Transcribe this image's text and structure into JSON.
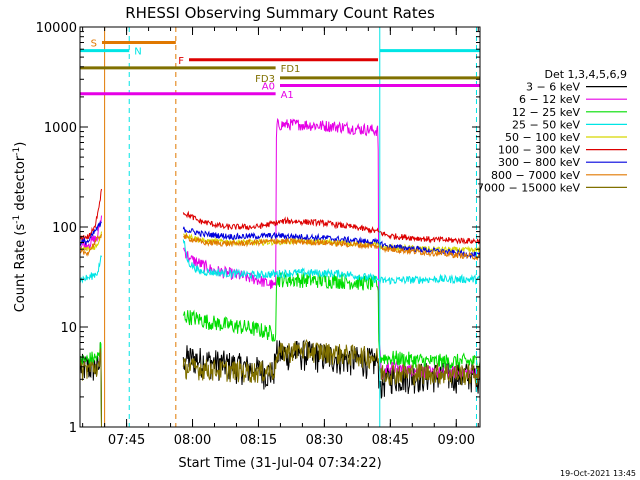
{
  "footer_timestamp": "19-Oct-2021 13:45",
  "chart_data": {
    "type": "line",
    "title": "RHESSI Observing Summary Count Rates",
    "xlabel": "Start Time (31-Jul-04 07:34:22)",
    "ylabel_main": "Count Rate (s",
    "ylabel_sup": "-1",
    "ylabel_mid": " detector",
    "ylabel_sup2": "-1",
    "ylabel_end": ")",
    "yscale": "log",
    "ylim": [
      1,
      10000
    ],
    "xlim_minutes": [
      0,
      91
    ],
    "x_ticks": [
      {
        "label": "07:45",
        "t": 10.6
      },
      {
        "label": "08:00",
        "t": 25.6
      },
      {
        "label": "08:15",
        "t": 40.6
      },
      {
        "label": "08:30",
        "t": 55.6
      },
      {
        "label": "08:45",
        "t": 70.6
      },
      {
        "label": "09:00",
        "t": 85.6
      }
    ],
    "y_ticks": [
      {
        "label": "1",
        "v": 1
      },
      {
        "label": "10",
        "v": 10
      },
      {
        "label": "100",
        "v": 100
      },
      {
        "label": "1000",
        "v": 1000
      },
      {
        "label": "10000",
        "v": 10000
      }
    ],
    "legend": {
      "title": "Det 1,3,4,5,6,9",
      "entries": [
        {
          "label": "3 − 6 keV",
          "color": "#000000"
        },
        {
          "label": "6 − 12 keV",
          "color": "#e600e6"
        },
        {
          "label": "12 − 25 keV",
          "color": "#00dd00"
        },
        {
          "label": "25 − 50 keV",
          "color": "#00e5e5"
        },
        {
          "label": "50 − 100 keV",
          "color": "#d8d800"
        },
        {
          "label": "100 − 300 keV",
          "color": "#dd0000"
        },
        {
          "label": "300 − 800 keV",
          "color": "#0000dd"
        },
        {
          "label": "800 − 7000 keV",
          "color": "#e07800"
        },
        {
          "label": "7000 − 15000 keV",
          "color": "#807000"
        }
      ]
    },
    "flag_bars": [
      {
        "label": "S",
        "color": "#e07800",
        "t0": 5.0,
        "t1": 21.8,
        "v": 7000,
        "label_side": "left"
      },
      {
        "label": "N",
        "color": "#00e5e5",
        "t0": 0.0,
        "t1": 11.2,
        "v": 5800,
        "label_side": "right"
      },
      {
        "label": "N",
        "color": "#00e5e5",
        "t0": 68.2,
        "t1": 91.0,
        "v": 5800,
        "label_side": "none"
      },
      {
        "label": "F",
        "color": "#dd0000",
        "t0": 24.8,
        "t1": 67.8,
        "v": 4700,
        "label_side": "left"
      },
      {
        "label": "FD1",
        "color": "#807000",
        "t0": 0.0,
        "t1": 44.5,
        "v": 3900,
        "label_side": "right"
      },
      {
        "label": "FD3",
        "color": "#807000",
        "t0": 45.5,
        "t1": 91.0,
        "v": 3100,
        "label_side": "left"
      },
      {
        "label": "A0",
        "color": "#e600e6",
        "t0": 45.5,
        "t1": 91.0,
        "v": 2600,
        "label_side": "left"
      },
      {
        "label": "A1",
        "color": "#e600e6",
        "t0": 0.0,
        "t1": 44.5,
        "v": 2150,
        "label_side": "right"
      }
    ],
    "night_lines": [
      {
        "t": 0.0,
        "color": "#00e5e5",
        "style": "solid"
      },
      {
        "t": 11.2,
        "color": "#00e5e5",
        "style": "dashed"
      },
      {
        "t": 68.2,
        "color": "#00e5e5",
        "style": "solid"
      },
      {
        "t": 90.2,
        "color": "#00e5e5",
        "style": "dashed"
      },
      {
        "t": 5.6,
        "color": "#e07800",
        "style": "solid"
      },
      {
        "t": 21.8,
        "color": "#e07800",
        "style": "dashed"
      }
    ],
    "series": [
      {
        "name": "3 - 6 keV",
        "color": "#000000",
        "noise": 0.35,
        "noise_scale": "lin",
        "segments": [
          [
            [
              0,
              4
            ],
            [
              4.5,
              4
            ],
            [
              4.7,
              7
            ],
            [
              4.9,
              1
            ]
          ],
          [
            [
              23.5,
              5
            ],
            [
              30,
              4.5
            ],
            [
              40,
              3.8
            ],
            [
              44,
              3.4
            ],
            [
              44.6,
              5.5
            ],
            [
              50,
              5.5
            ],
            [
              58,
              5
            ],
            [
              67.8,
              4.5
            ],
            [
              68.2,
              2.5
            ],
            [
              70,
              3.2
            ],
            [
              80,
              3.3
            ],
            [
              91,
              3.3
            ]
          ]
        ]
      },
      {
        "name": "6 - 12 keV",
        "color": "#e600e6",
        "noise": 0.06,
        "noise_scale": "log",
        "segments": [
          [
            [
              0,
              65
            ],
            [
              2,
              68
            ],
            [
              4,
              78
            ],
            [
              4.9,
              130
            ]
          ],
          [
            [
              23.5,
              60
            ],
            [
              25,
              48
            ],
            [
              30,
              37
            ],
            [
              40,
              30
            ],
            [
              44,
              26
            ],
            [
              44.6,
              26
            ],
            [
              44.7,
              1050
            ],
            [
              50,
              1060
            ],
            [
              58,
              1010
            ],
            [
              63,
              960
            ],
            [
              67.8,
              920
            ],
            [
              67.9,
              10
            ],
            [
              68.5,
              3
            ],
            [
              70,
              4
            ],
            [
              80,
              3.5
            ],
            [
              91,
              3.5
            ]
          ]
        ]
      },
      {
        "name": "12 - 25 keV",
        "color": "#00dd00",
        "noise": 0.08,
        "noise_scale": "log",
        "segments": [
          [
            [
              0,
              4.5
            ],
            [
              4.5,
              5
            ],
            [
              4.7,
              9
            ],
            [
              4.9,
              1
            ]
          ],
          [
            [
              23.5,
              13
            ],
            [
              30,
              11
            ],
            [
              40,
              9.5
            ],
            [
              44,
              8.5
            ],
            [
              44.6,
              8.5
            ],
            [
              44.7,
              30
            ],
            [
              58,
              29
            ],
            [
              67.8,
              27
            ],
            [
              68,
              5
            ],
            [
              80,
              4.5
            ],
            [
              91,
              4.5
            ]
          ]
        ]
      },
      {
        "name": "25 - 50 keV",
        "color": "#00e5e5",
        "noise": 0.04,
        "noise_scale": "log",
        "segments": [
          [
            [
              0,
              30
            ],
            [
              2,
              31
            ],
            [
              4,
              35
            ],
            [
              4.9,
              50
            ]
          ],
          [
            [
              23.5,
              75
            ],
            [
              24.5,
              45
            ],
            [
              27,
              36
            ],
            [
              40,
              33
            ],
            [
              50,
              35
            ],
            [
              60,
              34
            ],
            [
              67.8,
              30
            ],
            [
              68,
              29
            ],
            [
              80,
              30
            ],
            [
              91,
              30
            ]
          ]
        ]
      },
      {
        "name": "50 - 100 keV",
        "color": "#d8d800",
        "noise": 0.03,
        "noise_scale": "log",
        "segments": [
          [
            [
              0,
              60
            ],
            [
              2,
              60
            ],
            [
              4,
              65
            ],
            [
              4.9,
              90
            ]
          ],
          [
            [
              23.5,
              85
            ],
            [
              28,
              72
            ],
            [
              40,
              70
            ],
            [
              50,
              72
            ],
            [
              60,
              70
            ],
            [
              67.8,
              66
            ],
            [
              68,
              63
            ],
            [
              80,
              60
            ],
            [
              91,
              58
            ]
          ]
        ]
      },
      {
        "name": "100 - 300 keV",
        "color": "#dd0000",
        "noise": 0.03,
        "noise_scale": "log",
        "segments": [
          [
            [
              0,
              78
            ],
            [
              2,
              80
            ],
            [
              3.5,
              100
            ],
            [
              4.5,
              180
            ],
            [
              4.9,
              240
            ]
          ],
          [
            [
              23.5,
              140
            ],
            [
              27,
              115
            ],
            [
              33,
              100
            ],
            [
              40,
              100
            ],
            [
              47,
              115
            ],
            [
              55,
              110
            ],
            [
              62,
              100
            ],
            [
              67.8,
              90
            ],
            [
              70,
              82
            ],
            [
              80,
              75
            ],
            [
              91,
              72
            ]
          ]
        ]
      },
      {
        "name": "300 - 800 keV",
        "color": "#0000dd",
        "noise": 0.03,
        "noise_scale": "log",
        "segments": [
          [
            [
              0,
              70
            ],
            [
              2,
              72
            ],
            [
              4.9,
              110
            ]
          ],
          [
            [
              23.5,
              95
            ],
            [
              28,
              85
            ],
            [
              35,
              80
            ],
            [
              45,
              82
            ],
            [
              55,
              78
            ],
            [
              67.8,
              70
            ],
            [
              70,
              64
            ],
            [
              80,
              58
            ],
            [
              91,
              52
            ]
          ]
        ]
      },
      {
        "name": "800 - 7000 keV",
        "color": "#e07800",
        "noise": 0.03,
        "noise_scale": "log",
        "segments": [
          [
            [
              0,
              55
            ],
            [
              2,
              56
            ],
            [
              4.9,
              85
            ]
          ],
          [
            [
              23.5,
              80
            ],
            [
              28,
              70
            ],
            [
              35,
              68
            ],
            [
              45,
              72
            ],
            [
              55,
              70
            ],
            [
              67.8,
              64
            ],
            [
              70,
              60
            ],
            [
              80,
              55
            ],
            [
              91,
              50
            ]
          ]
        ]
      },
      {
        "name": "7000 - 15000 keV",
        "color": "#807000",
        "noise": 0.25,
        "noise_scale": "lin",
        "segments": [
          [
            [
              0,
              3.8
            ],
            [
              4.5,
              4
            ],
            [
              4.7,
              7
            ],
            [
              4.9,
              1
            ]
          ],
          [
            [
              23.5,
              4
            ],
            [
              30,
              3.8
            ],
            [
              40,
              3.6
            ],
            [
              44.6,
              3.8
            ],
            [
              44.7,
              5.5
            ],
            [
              50,
              6
            ],
            [
              58,
              5.5
            ],
            [
              67.8,
              5
            ],
            [
              68.2,
              3.5
            ],
            [
              80,
              3.5
            ],
            [
              91,
              3.4
            ]
          ]
        ]
      }
    ]
  }
}
